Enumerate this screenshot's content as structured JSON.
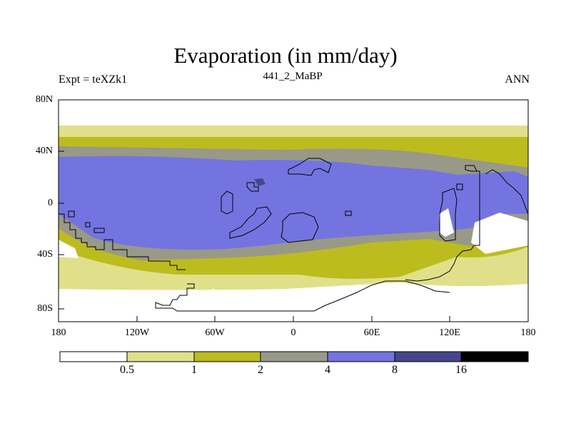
{
  "title": "Evaporation (in mm/day)",
  "left_label": "Expt = teXZk1",
  "center_label": "441_2_MaBP",
  "right_label": "ANN",
  "lat_ticks": [
    "80N",
    "40N",
    "0",
    "40S",
    "80S"
  ],
  "lon_ticks": [
    "180",
    "120W",
    "60W",
    "0",
    "60E",
    "120E",
    "180"
  ],
  "colorbar": {
    "boundaries": [
      "0.5",
      "1",
      "2",
      "4",
      "8",
      "16"
    ],
    "colors": [
      "#ffffff",
      "#e0e08a",
      "#bcbc1f",
      "#999988",
      "#7474e0",
      "#46468c",
      "#000000"
    ]
  },
  "colors": {
    "bg": "#ffffff",
    "lvl1": "#e0e08a",
    "lvl2": "#bcbc1f",
    "lvl3": "#999988",
    "lvl4": "#7474e0",
    "lvl5": "#46468c",
    "lvl6": "#000000"
  }
}
